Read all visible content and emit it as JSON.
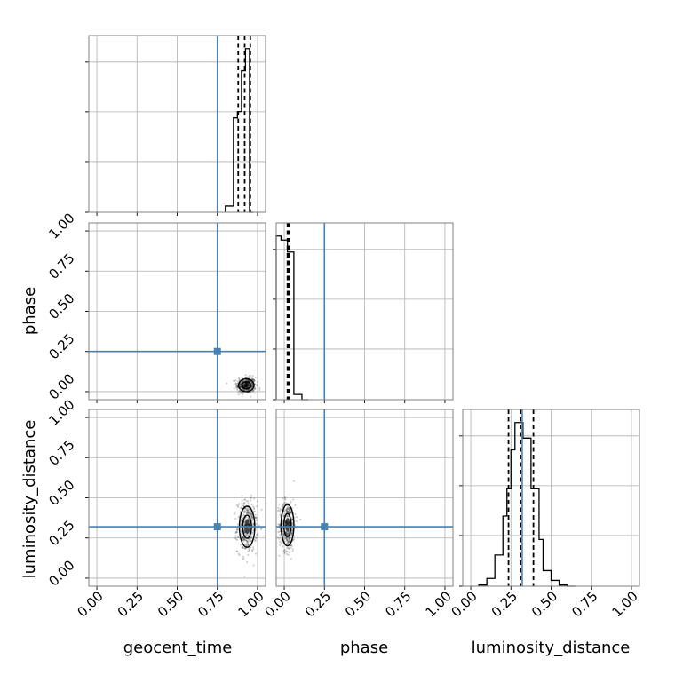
{
  "chart_data": {
    "type": "scatter",
    "title": "",
    "parameters": [
      "geocent_time",
      "phase",
      "luminosity_distance"
    ],
    "axis_labels": {
      "x": [
        "geocent_time",
        "phase",
        "luminosity_distance"
      ],
      "y": [
        "phase",
        "luminosity_distance"
      ]
    },
    "range": [
      0,
      1.05
    ],
    "range_min": -0.05,
    "tick_values": [
      0.0,
      0.25,
      0.5,
      0.75,
      1.0
    ],
    "tick_labels": [
      "0.00",
      "0.25",
      "0.50",
      "0.75",
      "1.00"
    ],
    "grid": true,
    "truth": {
      "geocent_time": 0.75,
      "phase": 0.25,
      "luminosity_distance": 0.32
    },
    "truth_color": "#4682b4",
    "marginals": {
      "geocent_time": {
        "bin_edges": [
          0.8,
          0.85,
          0.875,
          0.9,
          0.925,
          0.95,
          0.975
        ],
        "counts": [
          2,
          30,
          32,
          45,
          52,
          0
        ],
        "quantiles": [
          0.88,
          0.92,
          0.955
        ]
      },
      "phase": {
        "bin_edges": [
          -0.05,
          -0.02,
          0.02,
          0.06,
          0.11,
          0.15
        ],
        "counts": [
          41,
          40,
          37,
          1.3,
          0
        ],
        "quantiles": [
          0.02,
          0.025,
          0.03
        ]
      },
      "luminosity_distance": {
        "bin_edges": [
          0.05,
          0.1,
          0.15,
          0.2,
          0.225,
          0.25,
          0.275,
          0.3,
          0.325,
          0.35,
          0.375,
          0.4,
          0.425,
          0.45,
          0.5,
          0.55,
          0.6,
          0.65
        ],
        "counts": [
          0.3,
          2,
          8,
          18,
          25,
          35,
          42,
          42,
          38,
          38,
          25,
          25,
          12,
          4,
          1.5,
          0.3,
          0
        ],
        "quantiles": [
          0.235,
          0.31,
          0.39
        ]
      }
    },
    "joint": {
      "geocent_time_vs_phase": {
        "center": [
          0.93,
          0.04
        ],
        "spread": [
          0.03,
          0.025
        ]
      },
      "geocent_time_vs_luminosity_distance": {
        "center": [
          0.935,
          0.32
        ],
        "spread": [
          0.03,
          0.08
        ]
      },
      "phase_vs_luminosity_distance": {
        "center": [
          0.02,
          0.33
        ],
        "spread": [
          0.025,
          0.08
        ]
      }
    }
  }
}
